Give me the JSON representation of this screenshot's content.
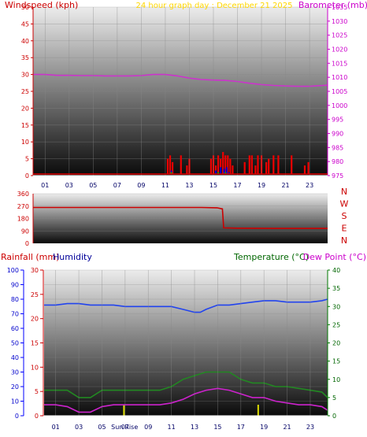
{
  "header": {
    "title": "24 hour graph day : December 21 2025"
  },
  "colors": {
    "wind_axis": "#cc0000",
    "baro_axis": "#cc00cc",
    "wind_series": "#ee0000",
    "wind_gust_series": "#0000cc",
    "wind_low_series": "#00aa00",
    "baro_series": "#cc33cc",
    "direction_series": "#cc0000",
    "rain_axis": "#cc0000",
    "hum_axis": "#0000ff",
    "temp_axis": "#006600",
    "dew_axis": "#cc00cc",
    "humidity_series": "#2244ee",
    "temperature_series": "#228822",
    "dewpoint_series": "#cc22cc",
    "sun_marker": "#dddd00",
    "title": "#ffd700"
  },
  "chart_data": [
    {
      "id": "wind-baro",
      "type": "line",
      "title": "24 hour graph day : December 21 2025",
      "ylabel_left": "Windspeed (kph)",
      "ylabel_right": "Barometer (mb)",
      "ylim_left": [
        0,
        50
      ],
      "ylim_right": [
        975,
        1035
      ],
      "yticks_left": [
        0,
        5,
        10,
        15,
        20,
        25,
        30,
        35,
        40,
        45,
        50
      ],
      "yticks_right": [
        975,
        980,
        985,
        990,
        995,
        1000,
        1005,
        1010,
        1015,
        1020,
        1025,
        1030,
        1035
      ],
      "xlim": [
        0,
        24.5
      ],
      "xticks": [
        "01",
        "03",
        "05",
        "07",
        "09",
        "11",
        "13",
        "15",
        "17",
        "19",
        "21",
        "23"
      ],
      "series": [
        {
          "name": "Barometer",
          "axis": "right",
          "x": [
            0,
            1,
            2,
            3,
            4,
            5,
            6,
            7,
            8,
            9,
            10,
            11,
            12,
            13,
            14,
            15,
            16,
            17,
            18,
            19,
            20,
            21,
            22,
            23,
            24.5
          ],
          "values": [
            1011,
            1011,
            1010.7,
            1010.7,
            1010.6,
            1010.6,
            1010.5,
            1010.5,
            1010.5,
            1010.6,
            1011,
            1011,
            1010.5,
            1009.7,
            1009.2,
            1009,
            1008.9,
            1008.5,
            1007.9,
            1007.4,
            1007.1,
            1006.9,
            1006.8,
            1006.8,
            1007.2
          ]
        },
        {
          "name": "Wind gust",
          "axis": "left",
          "bars": true,
          "x": [
            11.2,
            11.4,
            11.6,
            12.3,
            12.8,
            13,
            14.8,
            15,
            15.2,
            15.4,
            15.6,
            15.8,
            16,
            16.2,
            16.4,
            16.6,
            17.6,
            18,
            18.2,
            18.5,
            18.7,
            19,
            19.4,
            19.6,
            20,
            20.4,
            21.5,
            22.6,
            22.9
          ],
          "values": [
            5,
            6,
            4,
            6,
            3,
            5,
            5,
            6,
            3,
            6,
            5,
            7,
            6,
            6,
            5,
            3,
            4,
            6,
            6,
            3,
            6,
            6,
            4,
            5,
            6,
            6,
            6,
            3,
            4
          ]
        },
        {
          "name": "Wind average",
          "axis": "left",
          "bars": true,
          "x": [
            11.5,
            15.2,
            15.6,
            15.9,
            16.1,
            16.3
          ],
          "values": [
            1.5,
            1.5,
            2.5,
            2,
            2.5,
            1
          ]
        },
        {
          "name": "Wind low",
          "axis": "left",
          "bars": true,
          "x": [
            11.5,
            15.4,
            16
          ],
          "values": [
            1,
            1,
            1
          ]
        }
      ]
    },
    {
      "id": "direction",
      "type": "line",
      "ylim": [
        0,
        360
      ],
      "yticks": [
        0,
        90,
        180,
        270,
        360
      ],
      "compass_labels": [
        "N",
        "W",
        "S",
        "E",
        "N"
      ],
      "xlim": [
        0,
        24.5
      ],
      "series": [
        {
          "name": "Wind direction",
          "x": [
            0,
            3,
            6,
            9,
            12,
            14,
            15.3,
            15.75,
            15.85,
            17,
            20,
            22,
            24.5
          ],
          "values": [
            260,
            260,
            260,
            260,
            260,
            260,
            258,
            250,
            112,
            110,
            108,
            108,
            108
          ]
        }
      ]
    },
    {
      "id": "temp-hum",
      "type": "line",
      "ylabel_rain": "Rainfall (mm)",
      "ylabel_humidity": "Humidity",
      "ylabel_temperature": "Temperature (°C)",
      "ylabel_dewpoint": "Dew Point (°C)",
      "ylim_humidity": [
        0,
        100
      ],
      "ylim_rain": [
        0,
        30
      ],
      "ylim_temp": [
        0,
        40
      ],
      "yticks_humidity": [
        0,
        10,
        20,
        30,
        40,
        50,
        60,
        70,
        80,
        90,
        100
      ],
      "yticks_rain": [
        0,
        5,
        10,
        15,
        20,
        25,
        30
      ],
      "yticks_temp": [
        0,
        5,
        10,
        15,
        20,
        25,
        30,
        35,
        40
      ],
      "xlim": [
        0,
        24.5
      ],
      "xticks": [
        "01",
        "03",
        "05",
        "07",
        "09",
        "11",
        "13",
        "15",
        "17",
        "19",
        "21",
        "23"
      ],
      "sun_labels": [
        "Sun",
        "Rise"
      ],
      "sun_markers_x": [
        6.9,
        18.5
      ],
      "series": [
        {
          "name": "Humidity",
          "axis": "humidity",
          "x": [
            0,
            1,
            2,
            3,
            4,
            5,
            6,
            7,
            8,
            9,
            10,
            11,
            12,
            13,
            13.5,
            14,
            15,
            16,
            17,
            18,
            19,
            20,
            21,
            22,
            23,
            24,
            24.5
          ],
          "values": [
            76,
            76,
            77,
            77,
            76,
            76,
            76,
            75,
            75,
            75,
            75,
            75,
            73,
            71,
            71,
            73,
            76,
            76,
            77,
            78,
            79,
            79,
            78,
            78,
            78,
            79,
            80
          ]
        },
        {
          "name": "Temperature",
          "axis": "temp",
          "x": [
            0,
            1,
            2,
            3,
            4,
            5,
            6,
            7,
            8,
            9,
            10,
            11,
            12,
            13,
            14,
            15,
            16,
            17,
            18,
            19,
            20,
            21,
            22,
            23,
            24,
            24.5
          ],
          "values": [
            7,
            7,
            7,
            5,
            5,
            7,
            7,
            7,
            7,
            7,
            7,
            8,
            10,
            11,
            12,
            12,
            12,
            10,
            9,
            9,
            8,
            8,
            7.5,
            7,
            6.5,
            5
          ]
        },
        {
          "name": "Dew Point",
          "axis": "temp",
          "x": [
            0,
            1,
            2,
            3,
            4,
            5,
            6,
            7,
            8,
            9,
            10,
            11,
            12,
            13,
            14,
            15,
            16,
            17,
            18,
            19,
            20,
            21,
            22,
            23,
            24,
            24.5
          ],
          "values": [
            3,
            3,
            2.5,
            1,
            1,
            2.5,
            3,
            3,
            3,
            3,
            3,
            3.5,
            4.5,
            6,
            7,
            7.5,
            7,
            6,
            5,
            5,
            4,
            3.5,
            3,
            3,
            2.5,
            1.5
          ]
        }
      ]
    }
  ]
}
